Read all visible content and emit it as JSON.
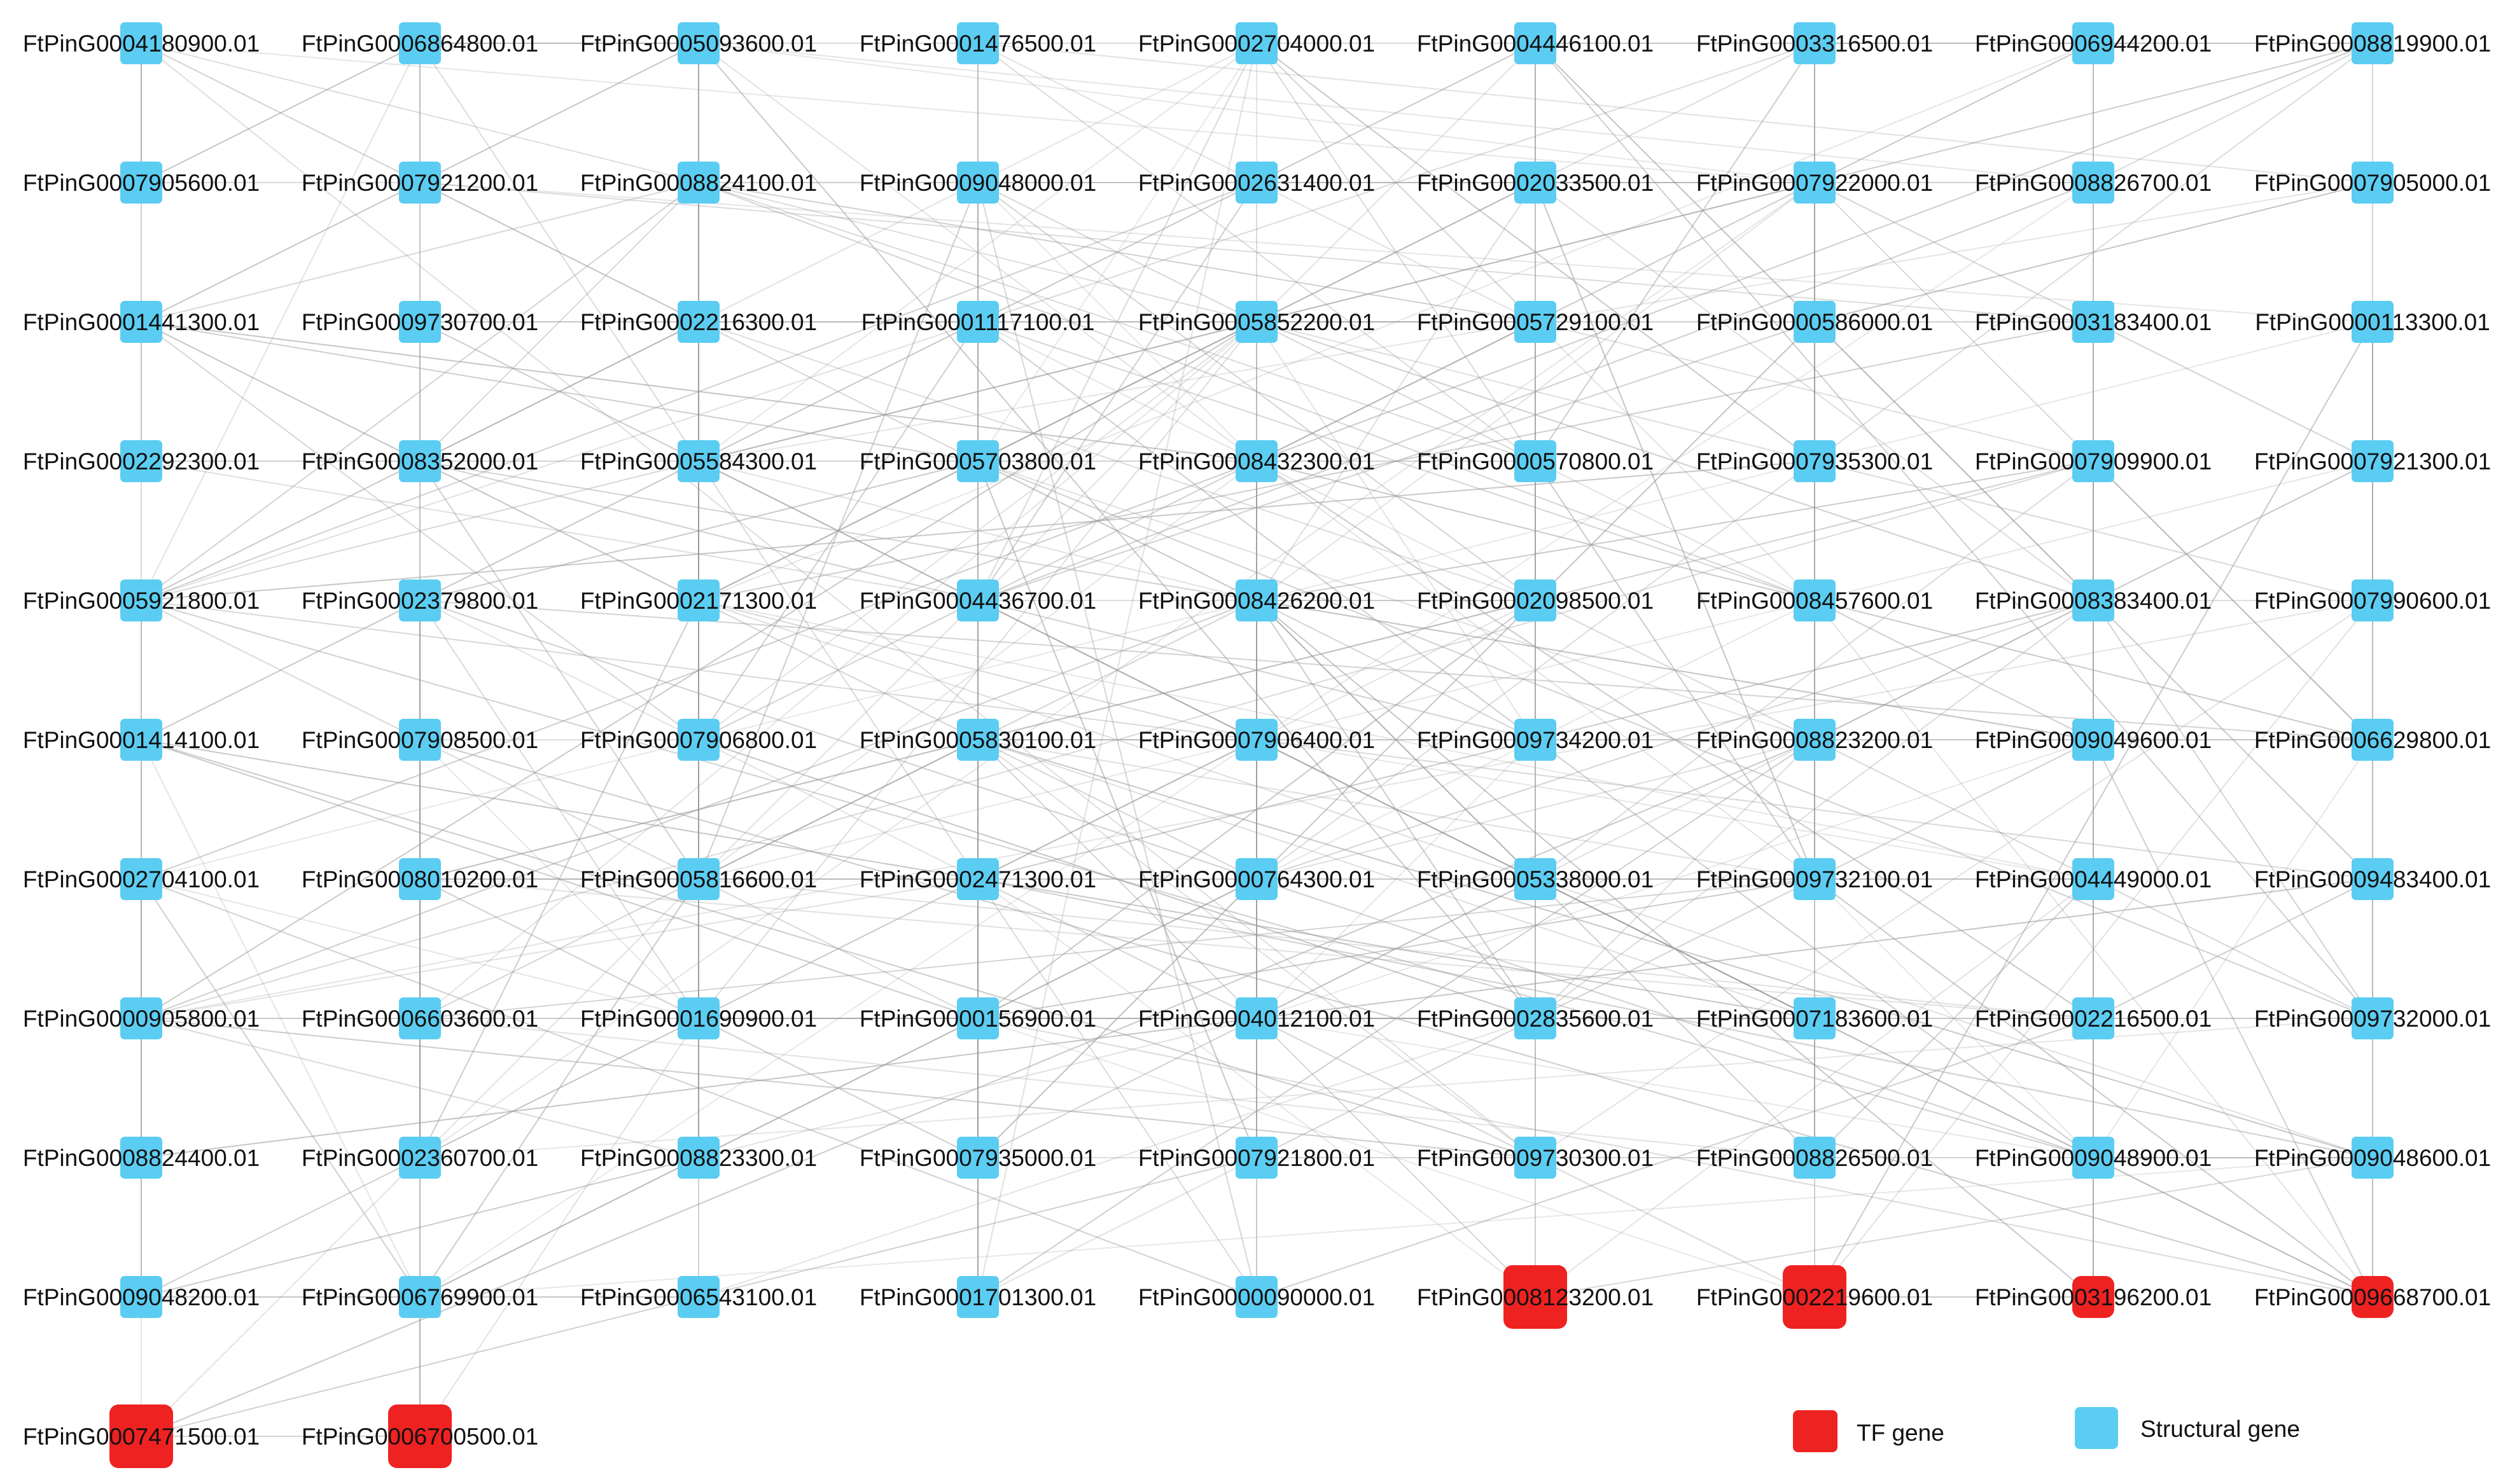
{
  "diagram": {
    "type": "gene co-expression network",
    "colors": {
      "tf": "#ef2222",
      "structural": "#5bcdf2",
      "edge": "#9a9a9a",
      "background": "#ffffff"
    },
    "grid_columns": 9,
    "nodes": [
      {
        "id": "FtPinG0004180900.01",
        "type": "structural"
      },
      {
        "id": "FtPinG0006864800.01",
        "type": "structural"
      },
      {
        "id": "FtPinG0005093600.01",
        "type": "structural"
      },
      {
        "id": "FtPinG0001476500.01",
        "type": "structural"
      },
      {
        "id": "FtPinG0002704000.01",
        "type": "structural"
      },
      {
        "id": "FtPinG0004446100.01",
        "type": "structural"
      },
      {
        "id": "FtPinG0003316500.01",
        "type": "structural"
      },
      {
        "id": "FtPinG0006944200.01",
        "type": "structural"
      },
      {
        "id": "FtPinG0008819900.01",
        "type": "structural"
      },
      {
        "id": "FtPinG0007905600.01",
        "type": "structural"
      },
      {
        "id": "FtPinG0007921200.01",
        "type": "structural"
      },
      {
        "id": "FtPinG0008824100.01",
        "type": "structural"
      },
      {
        "id": "FtPinG0009048000.01",
        "type": "structural"
      },
      {
        "id": "FtPinG0002631400.01",
        "type": "structural"
      },
      {
        "id": "FtPinG0002033500.01",
        "type": "structural"
      },
      {
        "id": "FtPinG0007922000.01",
        "type": "structural"
      },
      {
        "id": "FtPinG0008826700.01",
        "type": "structural"
      },
      {
        "id": "FtPinG0007905000.01",
        "type": "structural"
      },
      {
        "id": "FtPinG0001441300.01",
        "type": "structural"
      },
      {
        "id": "FtPinG0009730700.01",
        "type": "structural"
      },
      {
        "id": "FtPinG0002216300.01",
        "type": "structural"
      },
      {
        "id": "FtPinG0001117100.01",
        "type": "structural"
      },
      {
        "id": "FtPinG0005852200.01",
        "type": "structural"
      },
      {
        "id": "FtPinG0005729100.01",
        "type": "structural"
      },
      {
        "id": "FtPinG0000586000.01",
        "type": "structural"
      },
      {
        "id": "FtPinG0003183400.01",
        "type": "structural"
      },
      {
        "id": "FtPinG0000113300.01",
        "type": "structural"
      },
      {
        "id": "FtPinG0002292300.01",
        "type": "structural"
      },
      {
        "id": "FtPinG0008352000.01",
        "type": "structural"
      },
      {
        "id": "FtPinG0005584300.01",
        "type": "structural"
      },
      {
        "id": "FtPinG0005703800.01",
        "type": "structural"
      },
      {
        "id": "FtPinG0008432300.01",
        "type": "structural"
      },
      {
        "id": "FtPinG0000570800.01",
        "type": "structural"
      },
      {
        "id": "FtPinG0007935300.01",
        "type": "structural"
      },
      {
        "id": "FtPinG0007909900.01",
        "type": "structural"
      },
      {
        "id": "FtPinG0007921300.01",
        "type": "structural"
      },
      {
        "id": "FtPinG0005921800.01",
        "type": "structural"
      },
      {
        "id": "FtPinG0002379800.01",
        "type": "structural"
      },
      {
        "id": "FtPinG0002171300.01",
        "type": "structural"
      },
      {
        "id": "FtPinG0004436700.01",
        "type": "structural"
      },
      {
        "id": "FtPinG0008426200.01",
        "type": "structural"
      },
      {
        "id": "FtPinG0002098500.01",
        "type": "structural"
      },
      {
        "id": "FtPinG0008457600.01",
        "type": "structural"
      },
      {
        "id": "FtPinG0008383400.01",
        "type": "structural"
      },
      {
        "id": "FtPinG0007990600.01",
        "type": "structural"
      },
      {
        "id": "FtPinG0001414100.01",
        "type": "structural"
      },
      {
        "id": "FtPinG0007908500.01",
        "type": "structural"
      },
      {
        "id": "FtPinG0007906800.01",
        "type": "structural"
      },
      {
        "id": "FtPinG0005830100.01",
        "type": "structural"
      },
      {
        "id": "FtPinG0007906400.01",
        "type": "structural"
      },
      {
        "id": "FtPinG0009734200.01",
        "type": "structural"
      },
      {
        "id": "FtPinG0008823200.01",
        "type": "structural"
      },
      {
        "id": "FtPinG0009049600.01",
        "type": "structural"
      },
      {
        "id": "FtPinG0006629800.01",
        "type": "structural"
      },
      {
        "id": "FtPinG0002704100.01",
        "type": "structural"
      },
      {
        "id": "FtPinG0008010200.01",
        "type": "structural"
      },
      {
        "id": "FtPinG0005816600.01",
        "type": "structural"
      },
      {
        "id": "FtPinG0002471300.01",
        "type": "structural"
      },
      {
        "id": "FtPinG0000764300.01",
        "type": "structural"
      },
      {
        "id": "FtPinG0005338000.01",
        "type": "structural"
      },
      {
        "id": "FtPinG0009732100.01",
        "type": "structural"
      },
      {
        "id": "FtPinG0004449000.01",
        "type": "structural"
      },
      {
        "id": "FtPinG0009483400.01",
        "type": "structural"
      },
      {
        "id": "FtPinG0000905800.01",
        "type": "structural"
      },
      {
        "id": "FtPinG0006603600.01",
        "type": "structural"
      },
      {
        "id": "FtPinG0001690900.01",
        "type": "structural"
      },
      {
        "id": "FtPinG0000156900.01",
        "type": "structural"
      },
      {
        "id": "FtPinG0004012100.01",
        "type": "structural"
      },
      {
        "id": "FtPinG0002835600.01",
        "type": "structural"
      },
      {
        "id": "FtPinG0007183600.01",
        "type": "structural"
      },
      {
        "id": "FtPinG0002216500.01",
        "type": "structural"
      },
      {
        "id": "FtPinG0009732000.01",
        "type": "structural"
      },
      {
        "id": "FtPinG0008824400.01",
        "type": "structural"
      },
      {
        "id": "FtPinG0002360700.01",
        "type": "structural"
      },
      {
        "id": "FtPinG0008823300.01",
        "type": "structural"
      },
      {
        "id": "FtPinG0007935000.01",
        "type": "structural"
      },
      {
        "id": "FtPinG0007921800.01",
        "type": "structural"
      },
      {
        "id": "FtPinG0009730300.01",
        "type": "structural"
      },
      {
        "id": "FtPinG0008826500.01",
        "type": "structural"
      },
      {
        "id": "FtPinG0009048900.01",
        "type": "structural"
      },
      {
        "id": "FtPinG0009048600.01",
        "type": "structural"
      },
      {
        "id": "FtPinG0009048200.01",
        "type": "structural"
      },
      {
        "id": "FtPinG0006769900.01",
        "type": "structural"
      },
      {
        "id": "FtPinG0006543100.01",
        "type": "structural"
      },
      {
        "id": "FtPinG0001701300.01",
        "type": "structural"
      },
      {
        "id": "FtPinG0000090000.01",
        "type": "structural"
      },
      {
        "id": "FtPinG0008123200.01",
        "type": "tf",
        "size": "large"
      },
      {
        "id": "FtPinG0002219600.01",
        "type": "tf",
        "size": "large"
      },
      {
        "id": "FtPinG0003196200.01",
        "type": "tf",
        "size": "small"
      },
      {
        "id": "FtPinG0009668700.01",
        "type": "tf",
        "size": "small"
      },
      {
        "id": "FtPinG0007471500.01",
        "type": "tf",
        "size": "large"
      },
      {
        "id": "FtPinG0006700500.01",
        "type": "tf",
        "size": "large"
      }
    ]
  },
  "legend": {
    "position": "bottom-right",
    "items": [
      {
        "label": "TF gene",
        "type": "tf"
      },
      {
        "label": "Structural gene",
        "type": "structural"
      }
    ]
  }
}
